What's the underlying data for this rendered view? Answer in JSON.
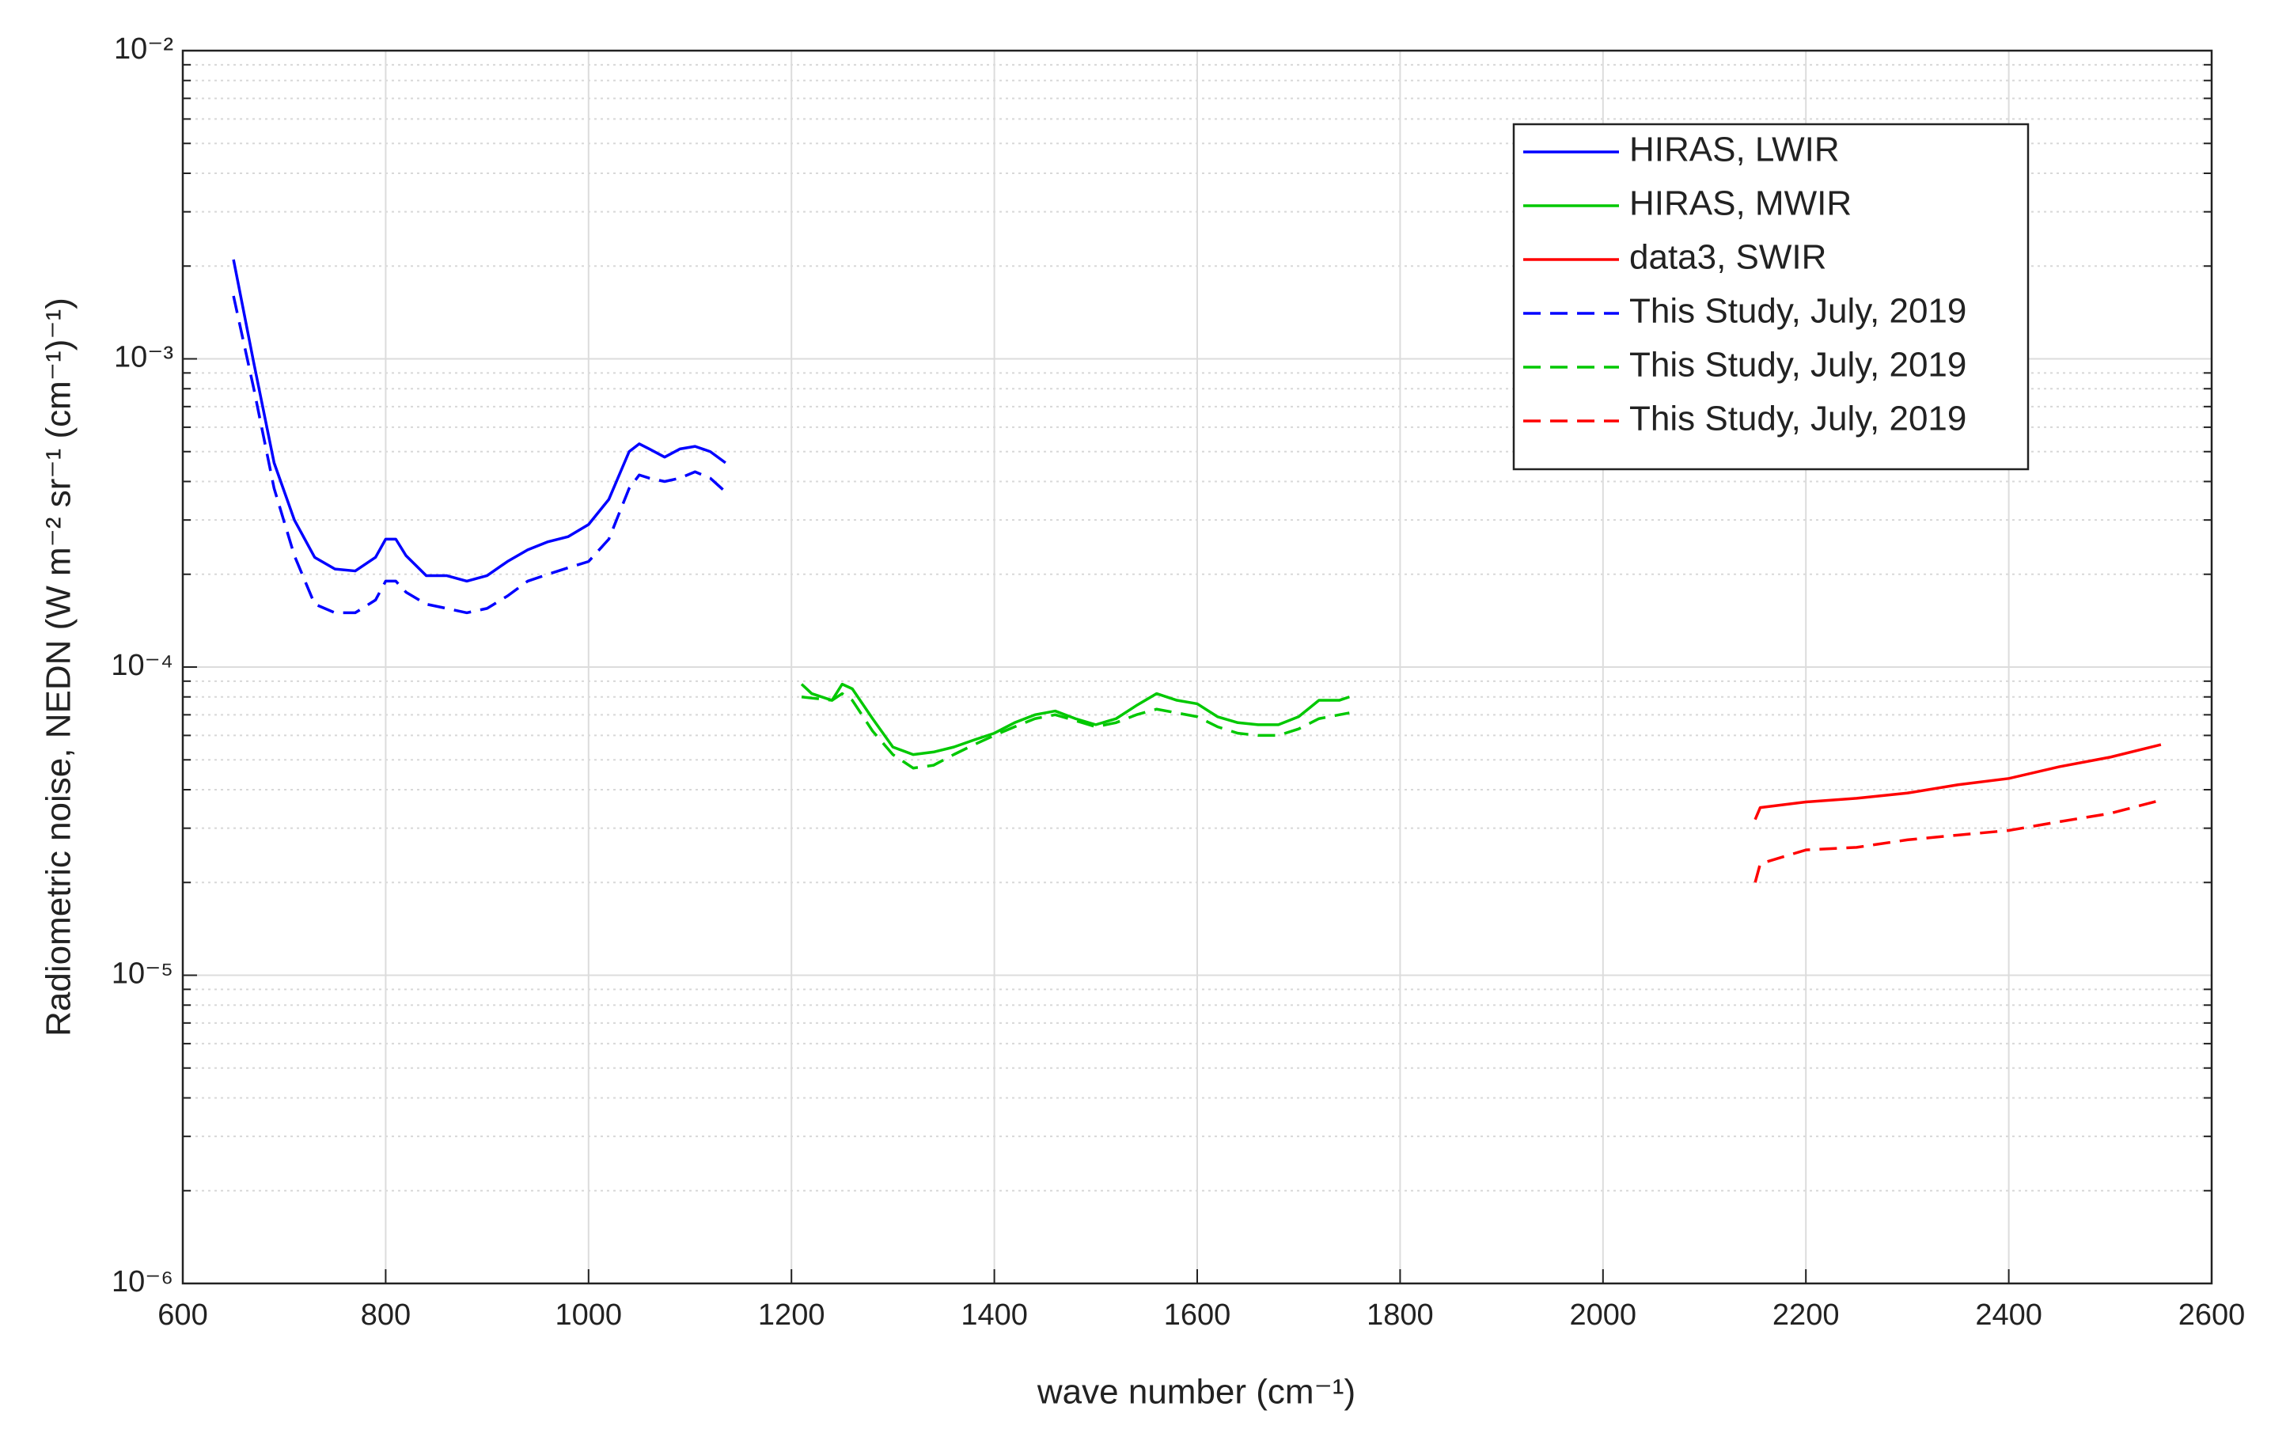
{
  "chart_data": {
    "type": "line",
    "xlabel": "wave number (cm⁻¹)",
    "ylabel": "Radiometric noise, NEDN (W m⁻² sr⁻¹ (cm⁻¹)⁻¹)",
    "xlim": [
      600,
      2600
    ],
    "xticks": [
      600,
      800,
      1000,
      1200,
      1400,
      1600,
      1800,
      2000,
      2200,
      2400,
      2600
    ],
    "ylim": [
      1e-06,
      0.01
    ],
    "yscale": "log",
    "yticks": [
      {
        "value": 1e-06,
        "label": "10⁻⁶"
      },
      {
        "value": 1e-05,
        "label": "10⁻⁵"
      },
      {
        "value": 0.0001,
        "label": "10⁻⁴"
      },
      {
        "value": 0.001,
        "label": "10⁻³"
      },
      {
        "value": 0.01,
        "label": "10⁻²"
      }
    ],
    "grid": true,
    "minor_grid": true,
    "legend_position": "northeast",
    "series": [
      {
        "name": "HIRAS, LWIR",
        "color": "#0000ff",
        "dashed": false,
        "x": [
          650,
          670,
          690,
          710,
          730,
          750,
          770,
          790,
          800,
          810,
          820,
          840,
          860,
          880,
          900,
          920,
          940,
          960,
          980,
          1000,
          1020,
          1040,
          1050,
          1060,
          1075,
          1090,
          1105,
          1120,
          1135
        ],
        "values": [
          0.0021,
          0.00097,
          0.00046,
          0.0003,
          0.000227,
          0.000208,
          0.000205,
          0.000227,
          0.00026,
          0.00026,
          0.00023,
          0.000198,
          0.000198,
          0.00019,
          0.000198,
          0.00022,
          0.00024,
          0.000255,
          0.000265,
          0.00029,
          0.00035,
          0.0005,
          0.00053,
          0.00051,
          0.00048,
          0.00051,
          0.00052,
          0.0005,
          0.00046
        ]
      },
      {
        "name": "HIRAS, MWIR",
        "color": "#00c800",
        "dashed": false,
        "x": [
          1210,
          1220,
          1240,
          1250,
          1260,
          1280,
          1300,
          1320,
          1340,
          1360,
          1380,
          1400,
          1420,
          1440,
          1460,
          1480,
          1500,
          1520,
          1540,
          1560,
          1580,
          1600,
          1620,
          1640,
          1660,
          1680,
          1700,
          1720,
          1740,
          1750
        ],
        "values": [
          8.8e-05,
          8.2e-05,
          7.8e-05,
          8.8e-05,
          8.5e-05,
          6.8e-05,
          5.5e-05,
          5.2e-05,
          5.3e-05,
          5.5e-05,
          5.8e-05,
          6.1e-05,
          6.6e-05,
          7e-05,
          7.2e-05,
          6.8e-05,
          6.5e-05,
          6.8e-05,
          7.5e-05,
          8.2e-05,
          7.8e-05,
          7.6e-05,
          6.9e-05,
          6.6e-05,
          6.5e-05,
          6.5e-05,
          6.9e-05,
          7.8e-05,
          7.8e-05,
          8e-05
        ]
      },
      {
        "name": "data3, SWIR",
        "color": "#ff0000",
        "dashed": false,
        "x": [
          2150,
          2155,
          2200,
          2250,
          2300,
          2350,
          2400,
          2450,
          2500,
          2550
        ],
        "values": [
          3.2e-05,
          3.5e-05,
          3.65e-05,
          3.75e-05,
          3.9e-05,
          4.15e-05,
          4.35e-05,
          4.75e-05,
          5.1e-05,
          5.6e-05
        ]
      },
      {
        "name": "This Study, July, 2019",
        "color": "#0000ff",
        "dashed": true,
        "x": [
          650,
          670,
          690,
          710,
          730,
          750,
          770,
          790,
          800,
          810,
          820,
          840,
          860,
          880,
          900,
          920,
          940,
          960,
          980,
          1000,
          1020,
          1040,
          1050,
          1060,
          1075,
          1090,
          1105,
          1120,
          1135
        ],
        "values": [
          0.0016,
          0.0008,
          0.00038,
          0.00023,
          0.00016,
          0.00015,
          0.00015,
          0.000165,
          0.00019,
          0.00019,
          0.000175,
          0.00016,
          0.000155,
          0.00015,
          0.000155,
          0.00017,
          0.00019,
          0.0002,
          0.00021,
          0.00022,
          0.00026,
          0.00038,
          0.00042,
          0.00041,
          0.0004,
          0.00041,
          0.00043,
          0.00041,
          0.00037
        ]
      },
      {
        "name": "This Study, July, 2019",
        "color": "#00c800",
        "dashed": true,
        "x": [
          1210,
          1240,
          1250,
          1260,
          1280,
          1300,
          1320,
          1340,
          1360,
          1380,
          1400,
          1420,
          1440,
          1460,
          1480,
          1500,
          1520,
          1540,
          1560,
          1580,
          1600,
          1620,
          1640,
          1660,
          1680,
          1700,
          1720,
          1740,
          1750
        ],
        "values": [
          8e-05,
          7.8e-05,
          8.2e-05,
          7.8e-05,
          6.2e-05,
          5.2e-05,
          4.7e-05,
          4.8e-05,
          5.2e-05,
          5.6e-05,
          6e-05,
          6.4e-05,
          6.8e-05,
          7e-05,
          6.7e-05,
          6.4e-05,
          6.6e-05,
          7e-05,
          7.3e-05,
          7.1e-05,
          6.9e-05,
          6.4e-05,
          6.1e-05,
          6e-05,
          6e-05,
          6.3e-05,
          6.8e-05,
          7e-05,
          7.1e-05
        ]
      },
      {
        "name": "This Study, July, 2019",
        "color": "#ff0000",
        "dashed": true,
        "x": [
          2150,
          2155,
          2200,
          2250,
          2300,
          2350,
          2400,
          2450,
          2500,
          2550
        ],
        "values": [
          2e-05,
          2.3e-05,
          2.55e-05,
          2.6e-05,
          2.75e-05,
          2.85e-05,
          2.95e-05,
          3.15e-05,
          3.35e-05,
          3.7e-05
        ]
      }
    ]
  }
}
